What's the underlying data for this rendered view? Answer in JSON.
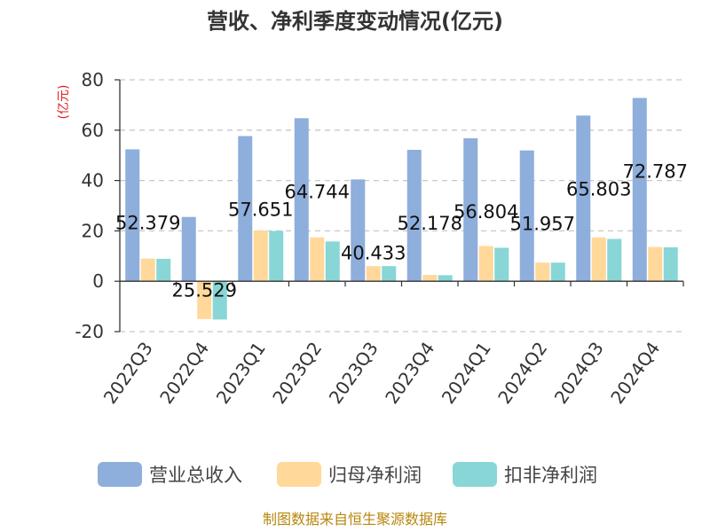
{
  "chart_data": {
    "type": "bar",
    "title": "营收、净利季度变动情况(亿元)",
    "ylabel": "(亿元)",
    "xlabel": "",
    "categories": [
      "2022Q3",
      "2022Q4",
      "2023Q1",
      "2023Q2",
      "2023Q3",
      "2023Q4",
      "2024Q1",
      "2024Q2",
      "2024Q3",
      "2024Q4"
    ],
    "series": [
      {
        "name": "营业总收入",
        "color": "#8eaedc",
        "values": [
          52.379,
          25.529,
          57.651,
          64.744,
          40.433,
          52.178,
          56.804,
          51.957,
          65.803,
          72.787
        ]
      },
      {
        "name": "归母净利润",
        "color": "#ffd89a",
        "values": [
          9.0,
          -15.0,
          20.2,
          17.4,
          6.0,
          2.5,
          14.0,
          7.4,
          17.4,
          13.6
        ]
      },
      {
        "name": "扣非净利润",
        "color": "#88d6d6",
        "values": [
          8.9,
          -15.2,
          20.0,
          15.8,
          6.0,
          2.4,
          13.3,
          7.4,
          16.8,
          13.5
        ]
      }
    ],
    "data_labels": [
      "52.379",
      "25.529",
      "57.651",
      "64.744",
      "40.433",
      "52.178",
      "56.804",
      "51.957",
      "65.803",
      "72.787"
    ],
    "ylim": [
      -20,
      80
    ],
    "yticks": [
      -20,
      0,
      20,
      40,
      60,
      80
    ],
    "grid": true,
    "legend_position": "bottom"
  },
  "source_text": "制图数据来自恒生聚源数据库"
}
